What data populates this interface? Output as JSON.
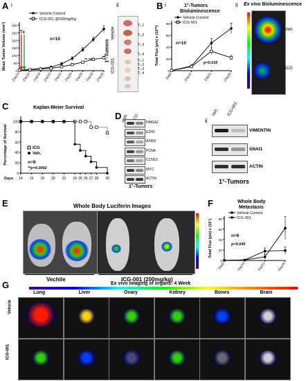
{
  "panelA": {
    "letter": "A",
    "sub_i": "i",
    "sub_ii": "ii",
    "legend": [
      "Vehicle Control",
      "ICG-001 @200mg/Kg"
    ],
    "tx": "Tx",
    "n": "n=10",
    "signif": "** ***",
    "tumor_title": "1°-Tumors",
    "group_labels": [
      "Vehicle",
      "ICG-001"
    ],
    "tumor_ids": [
      "T₁-1",
      "T₁-2",
      "T₁-3",
      "T₁-4"
    ]
  },
  "panelB": {
    "letter": "B",
    "sub_i": "i",
    "sub_ii": "ii",
    "title": "1°-Tumors",
    "title2": "Bioluminescence",
    "legend": [
      "Vehicle Control",
      "ICG-001"
    ],
    "n": "n=10",
    "p": "p=0.035",
    "exvivo": "Ex vivo",
    "exvivo2": "Bioluminescence",
    "veh": "Veh.",
    "icg": "ICG"
  },
  "panelC": {
    "letter": "C",
    "title": "Kaplan-Meier Survival",
    "legend": [
      "ICG",
      "Veh."
    ],
    "n": "n=9",
    "p": "**p=0.0092",
    "days": "Days"
  },
  "panelD": {
    "letter": "D",
    "sub_i": "i",
    "sub_ii": "ii",
    "cols": [
      "veh.",
      "ICG"
    ],
    "cols2": [
      "Veh.",
      "ICG-001"
    ],
    "blots": [
      "HMGA2",
      "EZH2",
      "AXIN2",
      "PCNA",
      "CCND1",
      "MYC",
      "ACTIN"
    ],
    "blots2": [
      "VIMENTIN",
      "SNAI1",
      "ACTIN"
    ],
    "caption": "1°-Tumors",
    "caption2": "1°-Tumors"
  },
  "panelE": {
    "letter": "E",
    "title": "Whole Body  Luciferin Images",
    "left_label": "Vechile",
    "right_label": "ICG-001 (200mg/kg)"
  },
  "panelF": {
    "letter": "F",
    "title": "Whole Body",
    "title2": "Metastasis",
    "legend": [
      "Vehicle Control",
      "ICG-001"
    ],
    "n": "n=6",
    "p": "p=0.045"
  },
  "panelG": {
    "letter": "G",
    "title": "Ex vivo imaging of organs: 4 Week",
    "organs": [
      "Lung",
      "Liver",
      "Ovary",
      "Kidney",
      "Bones",
      "Brain"
    ],
    "rows": [
      "Vehicle",
      "ICG-001"
    ]
  },
  "chart_data": [
    {
      "type": "line",
      "panel": "A-i",
      "x": [
        "Day14",
        "Day16",
        "Day18",
        "Day20",
        "Day22",
        "Day24",
        "Day26",
        "Day28",
        "Day30"
      ],
      "series": [
        {
          "name": "Vehicle Control",
          "values": [
            3,
            8,
            14,
            24,
            45,
            80,
            138,
            205,
            275
          ],
          "errors": [
            2,
            3,
            4,
            6,
            8,
            12,
            15,
            18,
            22
          ]
        },
        {
          "name": "ICG-001 @200mg/Kg",
          "values": [
            3,
            6,
            10,
            16,
            26,
            40,
            56,
            74,
            85
          ],
          "errors": [
            2,
            2,
            3,
            4,
            5,
            7,
            8,
            9,
            10
          ]
        }
      ],
      "ylabel": "Mean Tumor Volume (mm³)",
      "yticks": [
        0,
        50,
        100,
        150,
        200,
        250,
        300
      ],
      "ylim": [
        0,
        320
      ]
    },
    {
      "type": "line",
      "panel": "B-i",
      "x": [
        "Day0",
        "Day14",
        "Day21",
        "Day30"
      ],
      "series": [
        {
          "name": "Vehicle Control",
          "values": [
            0.2,
            8,
            47,
            72
          ],
          "errors": [
            0.1,
            2,
            8,
            9
          ]
        },
        {
          "name": "ICG-001",
          "values": [
            0.2,
            7,
            33,
            22
          ],
          "errors": [
            0.1,
            2,
            6,
            4
          ]
        }
      ],
      "ylabel": "Total Flux (p/s) x (10¹⁰)",
      "yticks": [
        0,
        20,
        40,
        60,
        80
      ],
      "ylim": [
        0,
        85
      ]
    },
    {
      "type": "line",
      "panel": "C",
      "x": [
        14,
        16,
        18,
        20,
        22,
        24,
        25,
        26,
        27,
        28,
        30
      ],
      "series": [
        {
          "name": "ICG",
          "values": [
            100,
            100,
            100,
            100,
            100,
            100,
            100,
            100,
            89,
            89,
            78
          ]
        },
        {
          "name": "Veh.",
          "values": [
            100,
            100,
            100,
            100,
            100,
            56,
            44,
            33,
            22,
            11,
            0
          ]
        }
      ],
      "xticks": [
        14,
        16,
        18,
        20,
        22,
        24,
        25,
        26,
        27,
        28,
        30
      ],
      "ylabel": "Percentage of Survival",
      "yticks": [
        0,
        20,
        40,
        60,
        80,
        100
      ],
      "ylim": [
        0,
        110
      ]
    },
    {
      "type": "line",
      "panel": "F",
      "x": [
        "Day0",
        "Day14",
        "Day21",
        "Day28"
      ],
      "series": [
        {
          "name": "Vehicle Control",
          "values": [
            0.3,
            1,
            7,
            62
          ],
          "errors": [
            0.1,
            1,
            5,
            22
          ]
        },
        {
          "name": "ICG-001",
          "values": [
            0.3,
            1,
            18,
            19
          ],
          "errors": [
            0.1,
            1,
            6,
            7
          ]
        }
      ],
      "ylabel": "Total Flux (p/s) x (10⁷)",
      "yticks": [
        0,
        20,
        40,
        60,
        80
      ],
      "ylim": [
        0,
        85
      ]
    }
  ]
}
